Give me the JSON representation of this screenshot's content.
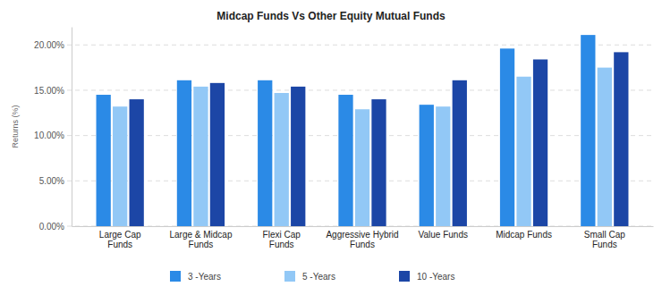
{
  "chart_data": {
    "type": "bar",
    "title": "Midcap Funds Vs Other Equity Mutual Funds",
    "y_label": "Returns (%)",
    "categories": [
      "Large Cap Funds",
      "Large & Midcap Funds",
      "Flexi Cap Funds",
      "Aggressive Hybrid Funds",
      "Value Funds",
      "Midcap Funds",
      "Small Cap Funds"
    ],
    "series": [
      {
        "name": "3 -Years",
        "color": "#2b8ae6",
        "values": [
          14.5,
          16.1,
          16.1,
          14.5,
          13.4,
          19.6,
          21.1
        ]
      },
      {
        "name": "5 -Years",
        "color": "#92c8f6",
        "values": [
          13.2,
          15.4,
          14.7,
          12.9,
          13.2,
          16.5,
          17.5
        ]
      },
      {
        "name": "10 -Years",
        "color": "#1c46a6",
        "values": [
          14.0,
          15.8,
          15.4,
          14.0,
          16.1,
          18.4,
          19.2
        ]
      }
    ],
    "ylim": [
      0,
      22
    ],
    "yticks": [
      {
        "value": 0,
        "label": "0.00%"
      },
      {
        "value": 5,
        "label": "5.00%"
      },
      {
        "value": 10,
        "label": "10.00%"
      },
      {
        "value": 15,
        "label": "15.00%"
      },
      {
        "value": 20,
        "label": "20.00%"
      }
    ],
    "grid": true,
    "legend": "bottom"
  }
}
